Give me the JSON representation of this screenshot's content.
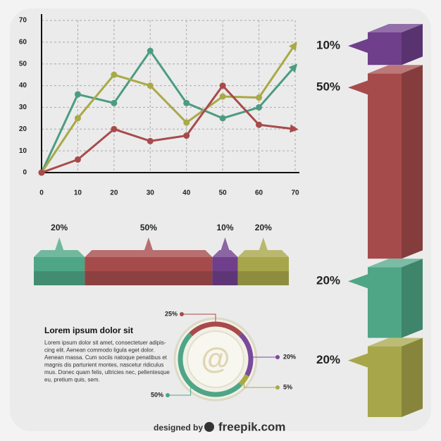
{
  "chart_data": [
    {
      "type": "line",
      "x": [
        0,
        10,
        20,
        30,
        40,
        50,
        60,
        70
      ],
      "xlim": [
        0,
        70
      ],
      "xticks": [
        0,
        10,
        20,
        30,
        40,
        50,
        60,
        70
      ],
      "ylim": [
        0,
        70
      ],
      "yticks": [
        0,
        10,
        20,
        30,
        40,
        50,
        60,
        70
      ],
      "grid": true,
      "series": [
        {
          "color": "#4c9c80",
          "values": [
            0,
            36,
            32,
            56,
            32,
            25,
            30,
            49
          ]
        },
        {
          "color": "#a9a947",
          "values": [
            0,
            25,
            45,
            40,
            23,
            35,
            34.5,
            59
          ]
        },
        {
          "color": "#a84a4a",
          "values": [
            0,
            6,
            20,
            14.5,
            17,
            40,
            22,
            20
          ]
        }
      ]
    },
    {
      "type": "stacked_bar_horizontal",
      "values": [
        20,
        50,
        10,
        20
      ],
      "value_labels": [
        "20%",
        "50%",
        "10%",
        "20%"
      ],
      "colors": [
        "#4ea686",
        "#a64b4b",
        "#6f3f8c",
        "#a7a64a"
      ]
    },
    {
      "type": "stacked_bar_vertical",
      "values": [
        10,
        50,
        20,
        20
      ],
      "value_labels": [
        "10%",
        "50%",
        "20%",
        "20%"
      ],
      "colors": [
        "#6f3f8c",
        "#a64b4b",
        "#4ea686",
        "#a7a64a"
      ]
    },
    {
      "type": "donut",
      "values": [
        25,
        20,
        5,
        50
      ],
      "value_labels": [
        "25%",
        "20%",
        "5%",
        "50%"
      ],
      "colors": [
        "#a84a4a",
        "#7a4a9a",
        "#a9a947",
        "#4ea686"
      ],
      "center_label": "@"
    }
  ],
  "text": {
    "heading": "Lorem ipsum dolor sit",
    "body": [
      "Lorem ipsum dolor sit amet, consectetuer adipis-",
      "cing elit. Aenean commodo ligula eget dolor.",
      "Aenean massa. Cum sociis natoque penatibus et",
      "magnis dis parturient montes, nascetur ridiculus",
      "mus. Donec quam felis, ultricies nec, pellentesque",
      "eu, pretium quis, sem."
    ]
  },
  "footer": {
    "prefix": "designed by",
    "brand": "freepik.com"
  }
}
